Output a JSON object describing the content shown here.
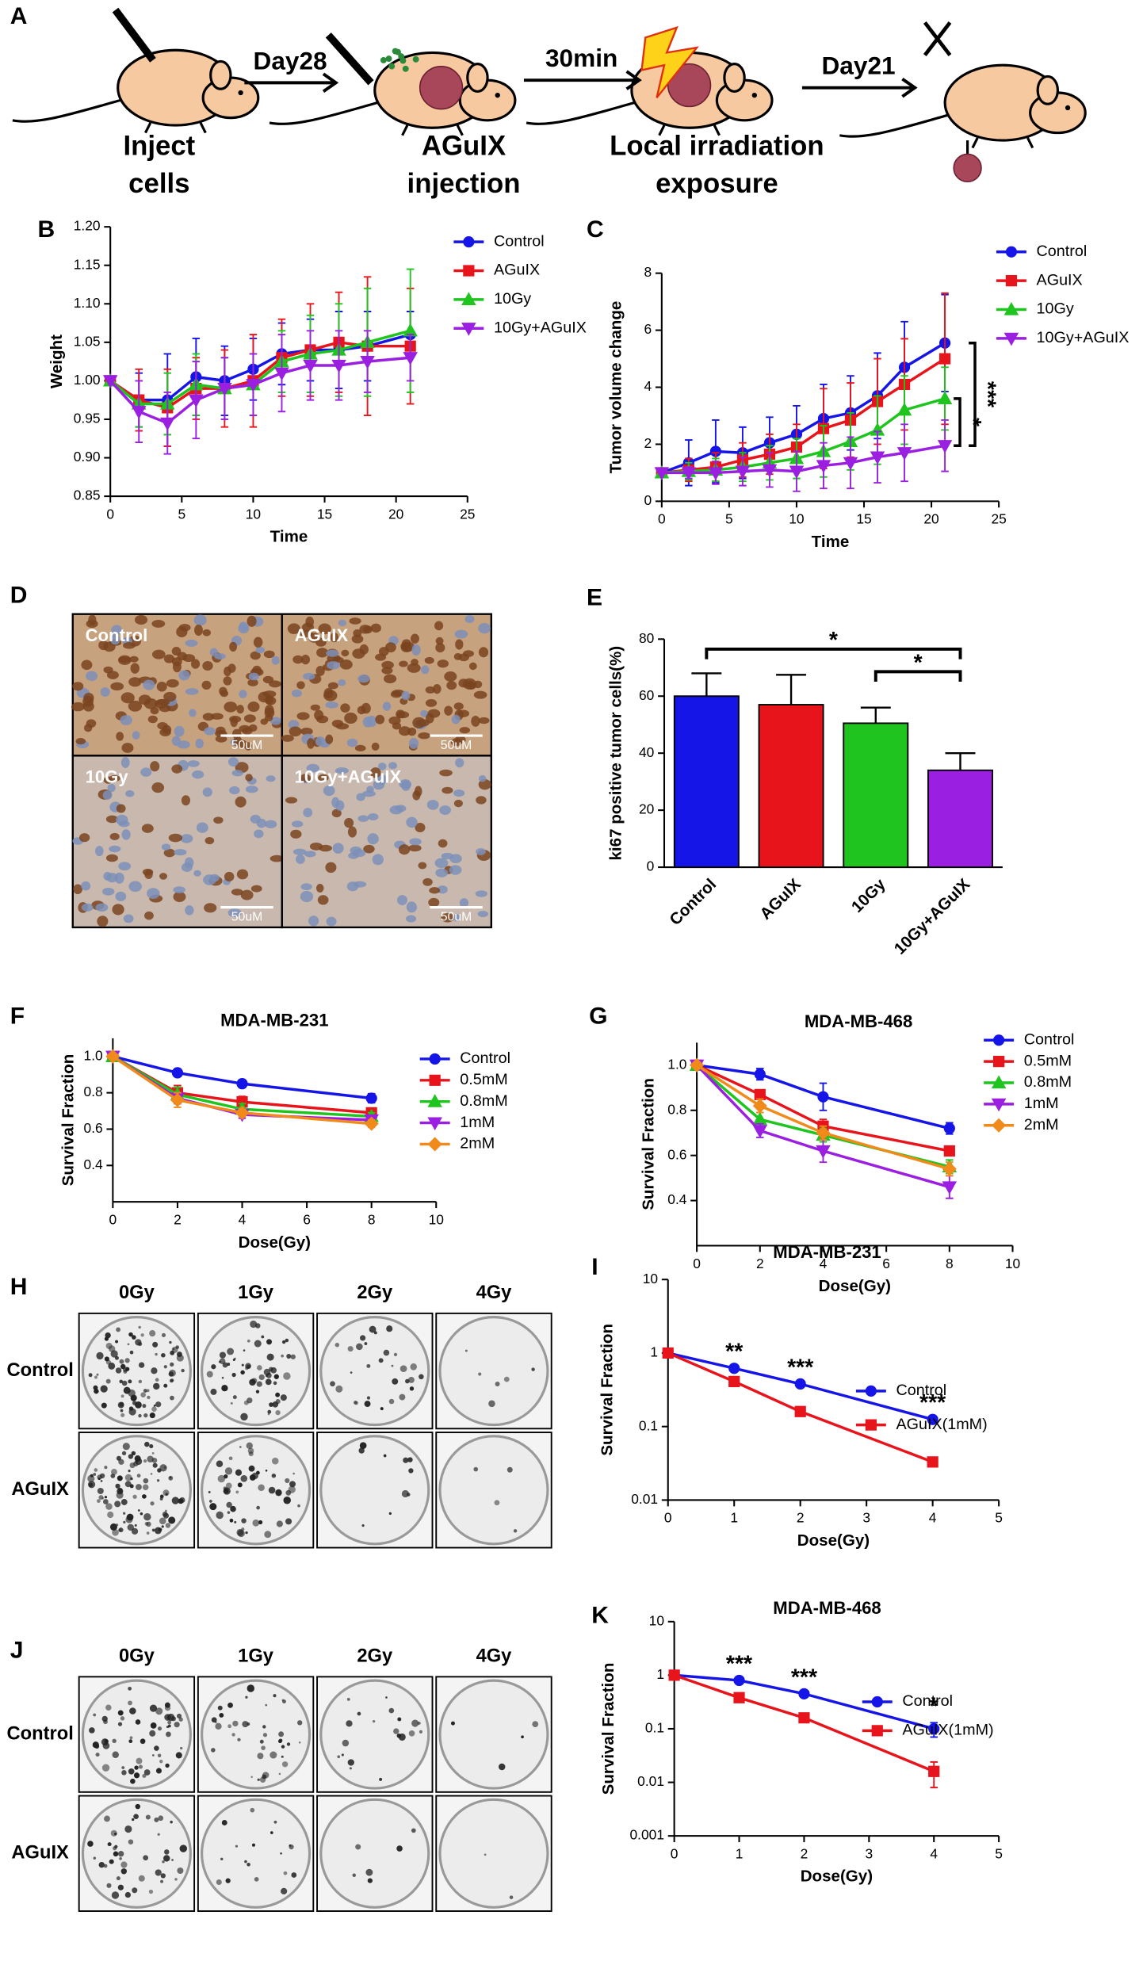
{
  "schematic": {
    "panel": "A",
    "steps": [
      {
        "lines": [
          "Inject",
          "cells"
        ]
      },
      {
        "lines": [
          "AGuIX",
          "injection"
        ]
      },
      {
        "lines": [
          "Local  irradiation",
          "exposure"
        ]
      }
    ],
    "intervals": [
      "Day28",
      "30min",
      "Day21"
    ]
  },
  "ihc": {
    "panel": "D",
    "groups": [
      "Control",
      "AGuIX",
      "10Gy",
      "10Gy+AGuIX"
    ],
    "scale_bar": "50uM"
  },
  "colonies": [
    {
      "panel": "H",
      "doses": [
        "0Gy",
        "1Gy",
        "2Gy",
        "4Gy"
      ],
      "groups": [
        "Control",
        "AGuIX"
      ]
    },
    {
      "panel": "J",
      "doses": [
        "0Gy",
        "1Gy",
        "2Gy",
        "4Gy"
      ],
      "groups": [
        "Control",
        "AGuIX"
      ]
    }
  ],
  "chart_data": [
    {
      "panel": "B",
      "type": "line",
      "xlabel": "Time",
      "ylabel": "Weight",
      "x": [
        0,
        2,
        4,
        6,
        8,
        10,
        12,
        14,
        16,
        18,
        21
      ],
      "xlim": [
        0,
        25
      ],
      "xticks": [
        0,
        5,
        10,
        15,
        20,
        25
      ],
      "ylim": [
        0.85,
        1.2
      ],
      "yticks": [
        0.85,
        {
          "value": 0.9,
          "label": "0.90"
        },
        0.95,
        {
          "value": 1,
          "label": "1.00"
        },
        1.05,
        {
          "value": 1.1,
          "label": "1.10"
        },
        1.15,
        {
          "value": 1.2,
          "label": "1.20"
        }
      ],
      "legend": "right",
      "series": [
        {
          "name": "Control",
          "color": "#1515e8",
          "marker": "circle",
          "values": [
            1,
            0.975,
            0.975,
            1.005,
            1,
            1.015,
            1.035,
            1.04,
            1.04,
            1.045,
            1.06
          ],
          "errors": [
            0,
            0.035,
            0.06,
            0.05,
            0.045,
            0.04,
            0.04,
            0.04,
            0.05,
            0.045,
            0.03
          ]
        },
        {
          "name": "AGuIX",
          "color": "#e8141c",
          "marker": "square",
          "values": [
            1,
            0.975,
            0.965,
            0.99,
            0.99,
            1,
            1.03,
            1.04,
            1.05,
            1.045,
            1.045
          ],
          "errors": [
            0,
            0.04,
            0.05,
            0.04,
            0.05,
            0.06,
            0.05,
            0.06,
            0.065,
            0.09,
            0.075
          ]
        },
        {
          "name": "10Gy",
          "color": "#1fc41f",
          "marker": "triangle",
          "values": [
            1,
            0.97,
            0.97,
            0.995,
            0.99,
            0.995,
            1.025,
            1.035,
            1.04,
            1.05,
            1.065
          ],
          "errors": [
            0,
            0.03,
            0.04,
            0.04,
            0.04,
            0.04,
            0.04,
            0.05,
            0.06,
            0.07,
            0.08
          ]
        },
        {
          "name": "10Gy+AGuIX",
          "color": "#9b1fe0",
          "marker": "triangle-down",
          "values": [
            1,
            0.96,
            0.945,
            0.975,
            0.99,
            0.995,
            1.01,
            1.02,
            1.02,
            1.025,
            1.03
          ],
          "errors": [
            0,
            0.04,
            0.04,
            0.05,
            0.04,
            0.04,
            0.05,
            0.045,
            0.045,
            0.04,
            0.03
          ]
        }
      ]
    },
    {
      "panel": "C",
      "type": "line",
      "xlabel": "Time",
      "ylabel": "Tumor volume change",
      "x": [
        0,
        2,
        4,
        6,
        8,
        10,
        12,
        14,
        16,
        18,
        21
      ],
      "xlim": [
        0,
        25
      ],
      "xticks": [
        0,
        5,
        10,
        15,
        20,
        25
      ],
      "ylim": [
        0,
        8
      ],
      "yticks": [
        0,
        2,
        4,
        6,
        8
      ],
      "legend": "right",
      "annotations": [
        "***",
        "*"
      ],
      "series": [
        {
          "name": "Control",
          "color": "#1515e8",
          "marker": "circle",
          "values": [
            1,
            1.35,
            1.75,
            1.7,
            2.05,
            2.35,
            2.9,
            3.1,
            3.7,
            4.7,
            5.55
          ],
          "errors": [
            0,
            0.8,
            1.1,
            0.9,
            0.9,
            1,
            1.2,
            1.3,
            1.5,
            1.6,
            1.7
          ]
        },
        {
          "name": "AGuIX",
          "color": "#e8141c",
          "marker": "square",
          "values": [
            1,
            1.1,
            1.2,
            1.45,
            1.65,
            1.9,
            2.55,
            2.85,
            3.5,
            4.1,
            5
          ],
          "errors": [
            0,
            0.4,
            0.5,
            0.6,
            0.7,
            0.8,
            1.4,
            1.3,
            1.5,
            1.6,
            2.3
          ]
        },
        {
          "name": "10Gy",
          "color": "#1fc41f",
          "marker": "triangle",
          "values": [
            1,
            1.05,
            1.1,
            1.2,
            1.35,
            1.5,
            1.75,
            2.1,
            2.5,
            3.2,
            3.6
          ],
          "errors": [
            0,
            0.3,
            0.4,
            0.5,
            0.6,
            0.7,
            0.9,
            1,
            1.2,
            1.2,
            1.1
          ]
        },
        {
          "name": "10Gy+AGuIX",
          "color": "#9b1fe0",
          "marker": "triangle-down",
          "values": [
            1,
            1,
            1,
            1.05,
            1.1,
            1.05,
            1.25,
            1.35,
            1.55,
            1.7,
            1.95
          ],
          "errors": [
            0,
            0.2,
            0.4,
            0.5,
            0.6,
            0.7,
            0.8,
            0.9,
            0.9,
            1,
            0.9
          ]
        }
      ]
    },
    {
      "panel": "E",
      "type": "bar",
      "ylabel": "ki67 positive tumor cells(%)",
      "categories": [
        "Control",
        "AGuIX",
        "10Gy",
        "10Gy+AGuIX"
      ],
      "values": [
        60,
        57,
        50.5,
        34
      ],
      "errors": [
        8,
        10.5,
        5.5,
        6
      ],
      "colors": [
        "#1515e8",
        "#e8141c",
        "#1fc41f",
        "#9b1fe0"
      ],
      "ylim": [
        0,
        80
      ],
      "yticks": [
        0,
        20,
        40,
        60,
        80
      ],
      "annotations": [
        "*",
        "*"
      ]
    },
    {
      "panel": "F",
      "type": "line",
      "title": "MDA-MB-231",
      "xlabel": "Dose(Gy)",
      "ylabel": "Survival Fraction",
      "x": [
        0,
        2,
        4,
        8
      ],
      "xlim": [
        0,
        10
      ],
      "xticks": [
        0,
        2,
        4,
        6,
        8,
        10
      ],
      "ylim": [
        0.2,
        1.1
      ],
      "yticks": [
        0.4,
        0.6,
        0.8,
        {
          "value": 1,
          "label": "1.0"
        }
      ],
      "legend": "right",
      "series": [
        {
          "name": "Control",
          "color": "#1515e8",
          "marker": "circle",
          "values": [
            1,
            0.91,
            0.85,
            0.77
          ],
          "errors": [
            0,
            0.02,
            0.02,
            0.025
          ]
        },
        {
          "name": "0.5mM",
          "color": "#e8141c",
          "marker": "square",
          "values": [
            1,
            0.8,
            0.75,
            0.69
          ],
          "errors": [
            0,
            0.04,
            0.03,
            0.02
          ]
        },
        {
          "name": "0.8mM",
          "color": "#1fc41f",
          "marker": "triangle",
          "values": [
            1,
            0.79,
            0.71,
            0.67
          ],
          "errors": [
            0,
            0.04,
            0.03,
            0.02
          ]
        },
        {
          "name": "1mM",
          "color": "#9b1fe0",
          "marker": "triangle-down",
          "values": [
            1,
            0.77,
            0.68,
            0.65
          ],
          "errors": [
            0,
            0.03,
            0.02,
            0.02
          ]
        },
        {
          "name": "2mM",
          "color": "#f08a1a",
          "marker": "diamond",
          "values": [
            1,
            0.76,
            0.69,
            0.63
          ],
          "errors": [
            0,
            0.04,
            0.02,
            0.02
          ]
        }
      ]
    },
    {
      "panel": "G",
      "type": "line",
      "title": "MDA-MB-468",
      "xlabel": "Dose(Gy)",
      "ylabel": "Survival Fraction",
      "x": [
        0,
        2,
        4,
        8
      ],
      "xlim": [
        0,
        10
      ],
      "xticks": [
        0,
        2,
        4,
        6,
        8,
        10
      ],
      "ylim": [
        0.2,
        1.1
      ],
      "yticks": [
        0.4,
        0.6,
        0.8,
        {
          "value": 1,
          "label": "1.0"
        }
      ],
      "legend": "right",
      "series": [
        {
          "name": "Control",
          "color": "#1515e8",
          "marker": "circle",
          "values": [
            1,
            0.96,
            0.86,
            0.72
          ],
          "errors": [
            0,
            0.025,
            0.06,
            0.025
          ]
        },
        {
          "name": "0.5mM",
          "color": "#e8141c",
          "marker": "square",
          "values": [
            1,
            0.87,
            0.73,
            0.62
          ],
          "errors": [
            0,
            0.02,
            0.03,
            0.02
          ]
        },
        {
          "name": "0.8mM",
          "color": "#1fc41f",
          "marker": "triangle",
          "values": [
            1,
            0.76,
            0.69,
            0.55
          ],
          "errors": [
            0,
            0.03,
            0.03,
            0.03
          ]
        },
        {
          "name": "1mM",
          "color": "#9b1fe0",
          "marker": "triangle-down",
          "values": [
            1,
            0.71,
            0.62,
            0.46
          ],
          "errors": [
            0,
            0.03,
            0.05,
            0.05
          ]
        },
        {
          "name": "2mM",
          "color": "#f08a1a",
          "marker": "diamond",
          "values": [
            1,
            0.82,
            0.7,
            0.54
          ],
          "errors": [
            0,
            0.03,
            0.03,
            0.03
          ]
        }
      ]
    },
    {
      "panel": "I",
      "type": "line",
      "title": "MDA-MB-231",
      "xlabel": "Dose(Gy)",
      "ylabel": "Survival Fraction",
      "log_y": true,
      "x": [
        0,
        1,
        2,
        4
      ],
      "xlim": [
        0,
        5
      ],
      "xticks": [
        0,
        1,
        2,
        3,
        4,
        5
      ],
      "ylim": [
        0.01,
        10
      ],
      "yticks": [
        0.01,
        0.1,
        1,
        10
      ],
      "legend": "right",
      "annotations": [
        "**",
        "***",
        "***"
      ],
      "series": [
        {
          "name": "Control",
          "color": "#1515e8",
          "marker": "circle",
          "values": [
            1,
            0.62,
            0.38,
            0.125
          ]
        },
        {
          "name": "AGuIX(1mM)",
          "color": "#e8141c",
          "marker": "square",
          "values": [
            1,
            0.41,
            0.16,
            0.033
          ]
        }
      ]
    },
    {
      "panel": "K",
      "type": "line",
      "title": "MDA-MB-468",
      "xlabel": "Dose(Gy)",
      "ylabel": "Survival Fraction",
      "log_y": true,
      "x": [
        0,
        1,
        2,
        4
      ],
      "xlim": [
        0,
        5
      ],
      "xticks": [
        0,
        1,
        2,
        3,
        4,
        5
      ],
      "ylim": [
        0.001,
        10
      ],
      "yticks": [
        0.001,
        0.01,
        0.1,
        1,
        10
      ],
      "legend": "right",
      "annotations": [
        "***",
        "***",
        "*"
      ],
      "series": [
        {
          "name": "Control",
          "color": "#1515e8",
          "marker": "circle",
          "values": [
            1,
            0.8,
            0.45,
            0.1
          ],
          "errors": [
            0,
            0,
            0,
            0.03
          ]
        },
        {
          "name": "AGuIX(1mM)",
          "color": "#e8141c",
          "marker": "square",
          "values": [
            1,
            0.38,
            0.16,
            0.016
          ],
          "errors": [
            0,
            0,
            0,
            0.008
          ]
        }
      ]
    }
  ]
}
